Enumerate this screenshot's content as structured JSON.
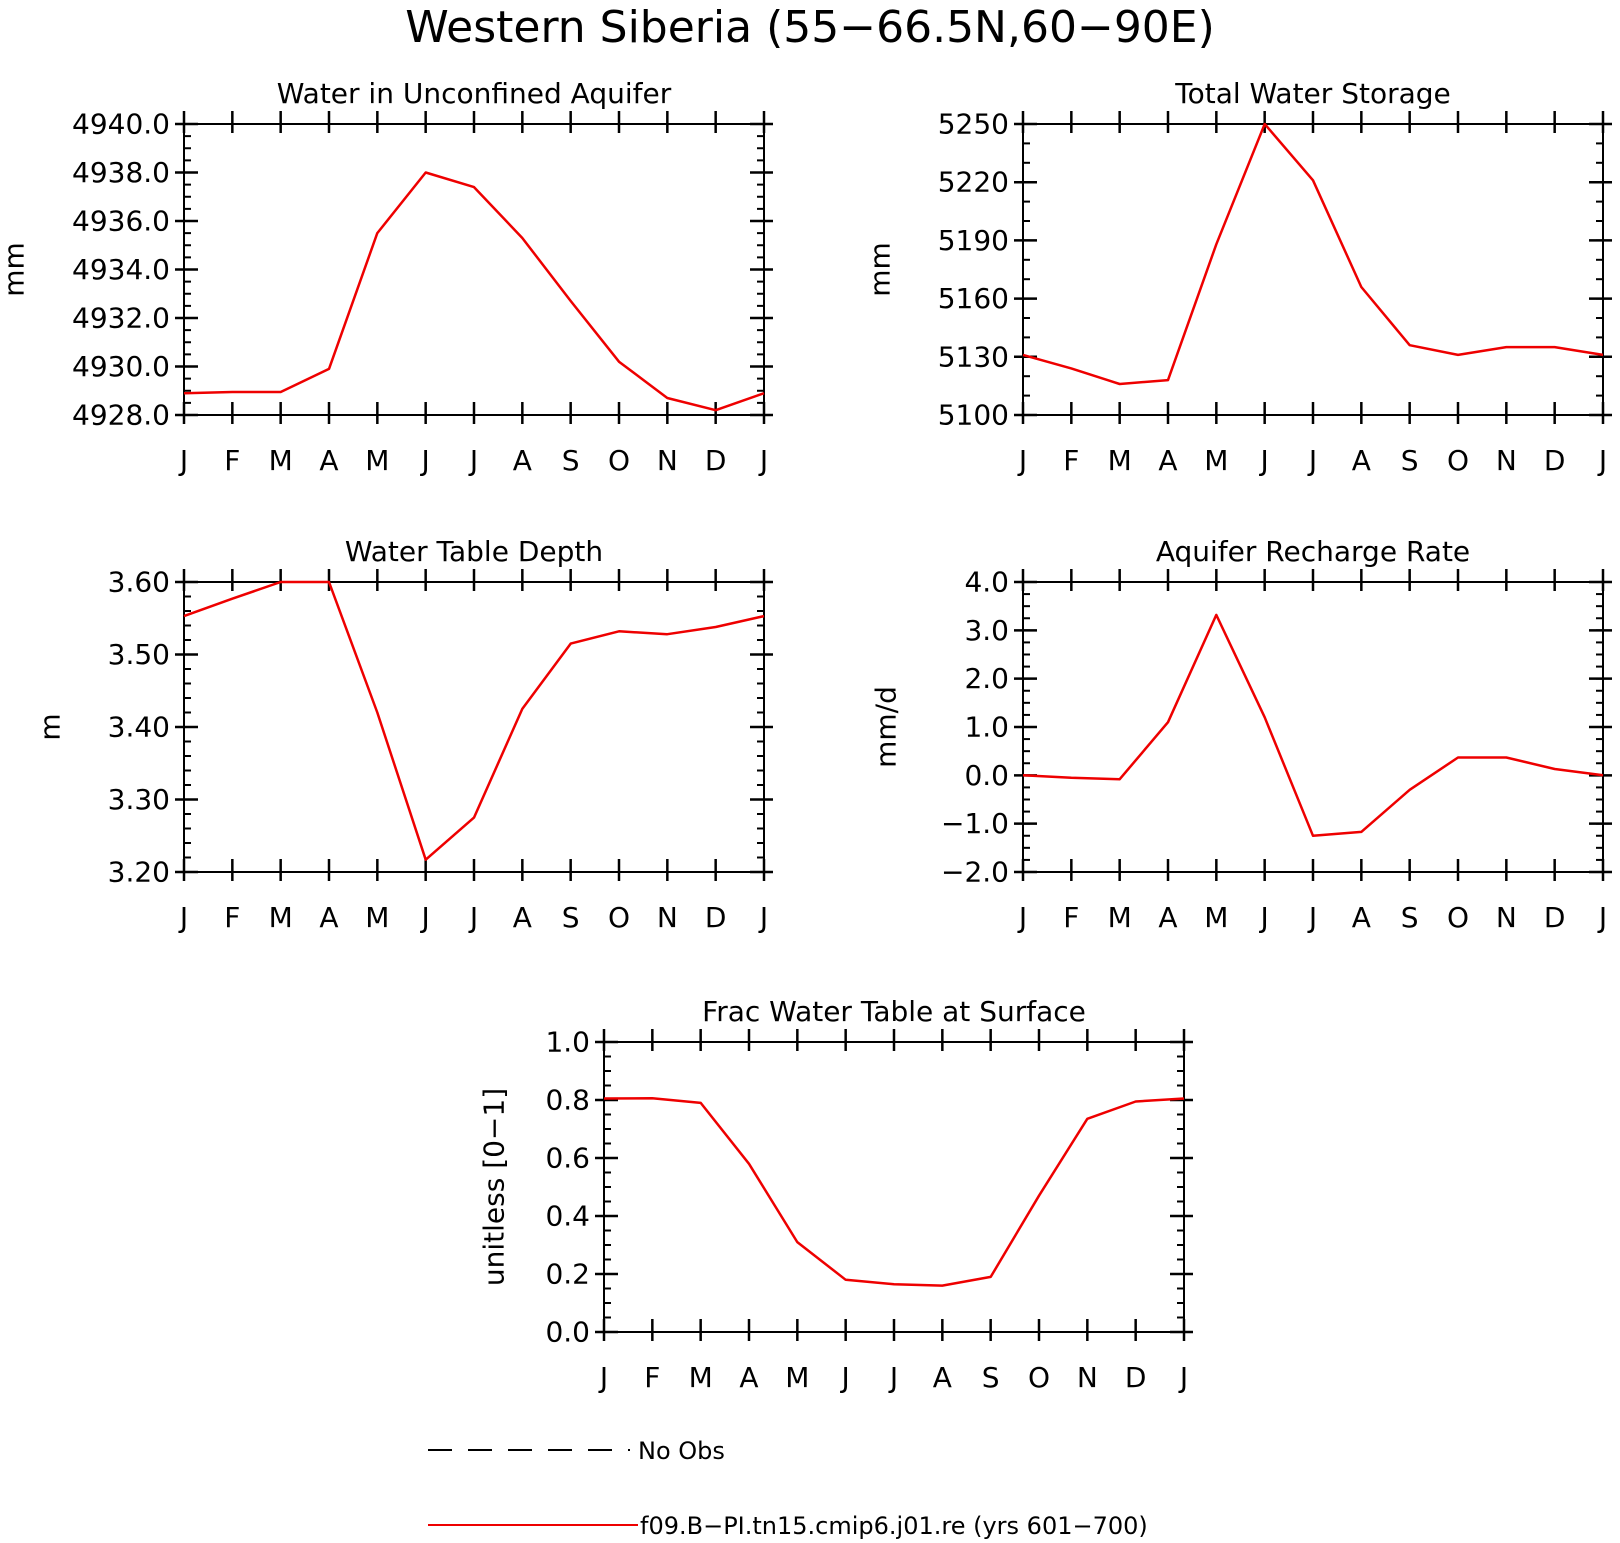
{
  "figure_title": "Western Siberia (55−66.5N,60−90E)",
  "months": [
    "J",
    "F",
    "M",
    "A",
    "M",
    "J",
    "J",
    "A",
    "S",
    "O",
    "N",
    "D",
    "J"
  ],
  "legend": {
    "obs_label": "No Obs",
    "model_label": "f09.B−PI.tn15.cmip6.j01.re (yrs 601−700)",
    "model_color": "#ee0000",
    "obs_color": "#000000"
  },
  "chart_data": [
    {
      "type": "line",
      "title": "Water in Unconfined Aquifer",
      "ylabel": "mm",
      "ylim": [
        4928.0,
        4940.0
      ],
      "yticks": [
        "4928.0",
        "4930.0",
        "4932.0",
        "4934.0",
        "4936.0",
        "4938.0",
        "4940.0"
      ],
      "y_minor_count": 24,
      "series": [
        {
          "name": "f09.B−PI.tn15.cmip6.j01.re (yrs 601−700)",
          "values": [
            4928.9,
            4928.95,
            4928.95,
            4929.9,
            4935.5,
            4938.0,
            4937.4,
            4935.3,
            4932.7,
            4930.2,
            4928.7,
            4928.2,
            4928.9
          ]
        }
      ]
    },
    {
      "type": "line",
      "title": "Total Water Storage",
      "ylabel": "mm",
      "ylim": [
        5100,
        5250
      ],
      "yticks": [
        "5100",
        "5130",
        "5160",
        "5190",
        "5220",
        "5250"
      ],
      "y_minor_count": 15,
      "series": [
        {
          "name": "f09.B−PI.tn15.cmip6.j01.re (yrs 601−700)",
          "values": [
            5131,
            5124,
            5116,
            5118,
            5188,
            5250,
            5221,
            5166,
            5136,
            5131,
            5135,
            5135,
            5131
          ]
        }
      ]
    },
    {
      "type": "line",
      "title": "Water Table Depth",
      "ylabel": "m",
      "ylim": [
        3.2,
        3.6
      ],
      "yticks": [
        "3.20",
        "3.30",
        "3.40",
        "3.50",
        "3.60"
      ],
      "y_minor_count": 20,
      "series": [
        {
          "name": "f09.B−PI.tn15.cmip6.j01.re (yrs 601−700)",
          "values": [
            3.553,
            3.577,
            3.6,
            3.6,
            3.42,
            3.217,
            3.275,
            3.425,
            3.515,
            3.532,
            3.528,
            3.538,
            3.553
          ]
        }
      ]
    },
    {
      "type": "line",
      "title": "Aquifer Recharge Rate",
      "ylabel": "mm/d",
      "ylim": [
        -2.0,
        4.0
      ],
      "yticks": [
        "−2.0",
        "−1.0",
        "0.0",
        "1.0",
        "2.0",
        "3.0",
        "4.0"
      ],
      "y_minor_count": 24,
      "series": [
        {
          "name": "f09.B−PI.tn15.cmip6.j01.re (yrs 601−700)",
          "values": [
            0.0,
            -0.05,
            -0.08,
            1.1,
            3.32,
            1.2,
            -1.25,
            -1.17,
            -0.3,
            0.37,
            0.37,
            0.13,
            0.0
          ]
        }
      ]
    },
    {
      "type": "line",
      "title": "Frac Water Table at Surface",
      "ylabel": "unitless [0−1]",
      "ylim": [
        0.0,
        1.0
      ],
      "yticks": [
        "0.0",
        "0.2",
        "0.4",
        "0.6",
        "0.8",
        "1.0"
      ],
      "y_minor_count": 20,
      "series": [
        {
          "name": "f09.B−PI.tn15.cmip6.j01.re (yrs 601−700)",
          "values": [
            0.805,
            0.806,
            0.79,
            0.58,
            0.31,
            0.18,
            0.165,
            0.16,
            0.19,
            0.47,
            0.735,
            0.795,
            0.805
          ]
        }
      ]
    }
  ]
}
